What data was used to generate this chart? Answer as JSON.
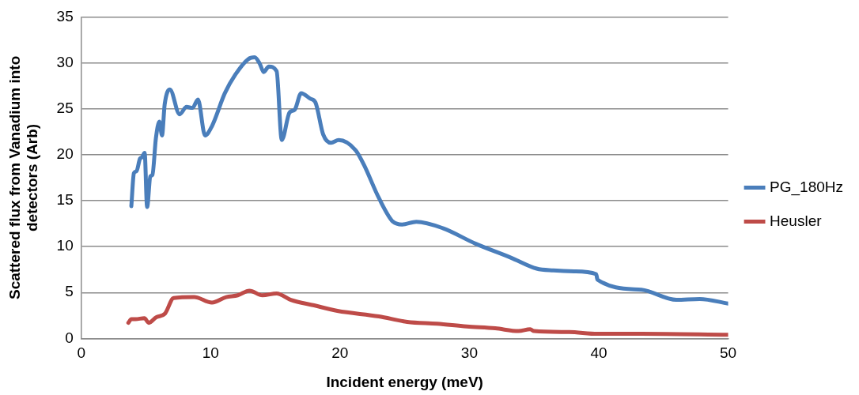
{
  "chart_data": {
    "type": "line",
    "xlabel": "Incident energy (meV)",
    "ylabel": "Scattered flux from Vanadium into detectors (Arb)",
    "xlim": [
      0,
      50
    ],
    "xticks": [
      0,
      10,
      20,
      30,
      40,
      50
    ],
    "ylim": [
      0,
      35
    ],
    "yticks": [
      0,
      5,
      10,
      15,
      20,
      25,
      30,
      35
    ],
    "grid": "y",
    "legend": "right",
    "marker": "none",
    "line_style": "solid",
    "series": [
      {
        "name": "PG_180Hz",
        "color": "#4a7ebb",
        "x": [
          3.87,
          4.07,
          4.27,
          4.55,
          4.68,
          4.9,
          5.09,
          5.34,
          5.5,
          5.77,
          6.04,
          6.24,
          6.45,
          6.85,
          7.6,
          8.14,
          8.6,
          9.02,
          9.57,
          10.1,
          11.1,
          11.9,
          12.9,
          13.4,
          13.8,
          14.1,
          14.5,
          15.1,
          15.5,
          16.1,
          16.5,
          17.0,
          17.7,
          18.1,
          18.7,
          19.3,
          19.9,
          21.2,
          21.85,
          23.0,
          24.1,
          24.8,
          25.9,
          27.95,
          30.5,
          33.2,
          35.2,
          36.5,
          38.1,
          39.8,
          39.9,
          43.3,
          46.0,
          47.8,
          50.0
        ],
        "values": [
          14.4,
          18.0,
          18.2,
          19.6,
          19.7,
          20.2,
          14.3,
          17.65,
          17.8,
          21.8,
          23.6,
          22.1,
          25.5,
          27.1,
          24.4,
          25.2,
          25.1,
          26.0,
          22.1,
          23.1,
          26.7,
          28.7,
          30.4,
          30.6,
          29.9,
          29.0,
          29.6,
          29.1,
          21.6,
          24.6,
          24.9,
          26.7,
          26.1,
          25.7,
          22.2,
          21.3,
          21.6,
          20.5,
          18.9,
          15.3,
          12.7,
          12.4,
          12.7,
          12.0,
          10.3,
          8.8,
          7.6,
          7.4,
          7.3,
          7.0,
          6.4,
          5.3,
          4.2,
          4.3,
          3.8
        ]
      },
      {
        "name": "Heusler",
        "color": "#be4b48",
        "x": [
          3.64,
          3.87,
          4.2,
          4.88,
          5.22,
          5.79,
          6.47,
          7.14,
          8.73,
          10.1,
          11.2,
          12.1,
          13.0,
          14.0,
          15.1,
          16.2,
          18.0,
          19.8,
          23.0,
          25.2,
          27.5,
          29.8,
          32.0,
          33.8,
          34.7,
          35.0,
          37.7,
          39.9,
          43.3,
          50.0
        ],
        "values": [
          1.7,
          2.1,
          2.1,
          2.2,
          1.7,
          2.3,
          2.7,
          4.4,
          4.5,
          3.9,
          4.5,
          4.7,
          5.2,
          4.7,
          4.9,
          4.2,
          3.6,
          3.0,
          2.4,
          1.8,
          1.6,
          1.3,
          1.1,
          0.8,
          1.0,
          0.8,
          0.7,
          0.5,
          0.5,
          0.4
        ]
      }
    ]
  }
}
